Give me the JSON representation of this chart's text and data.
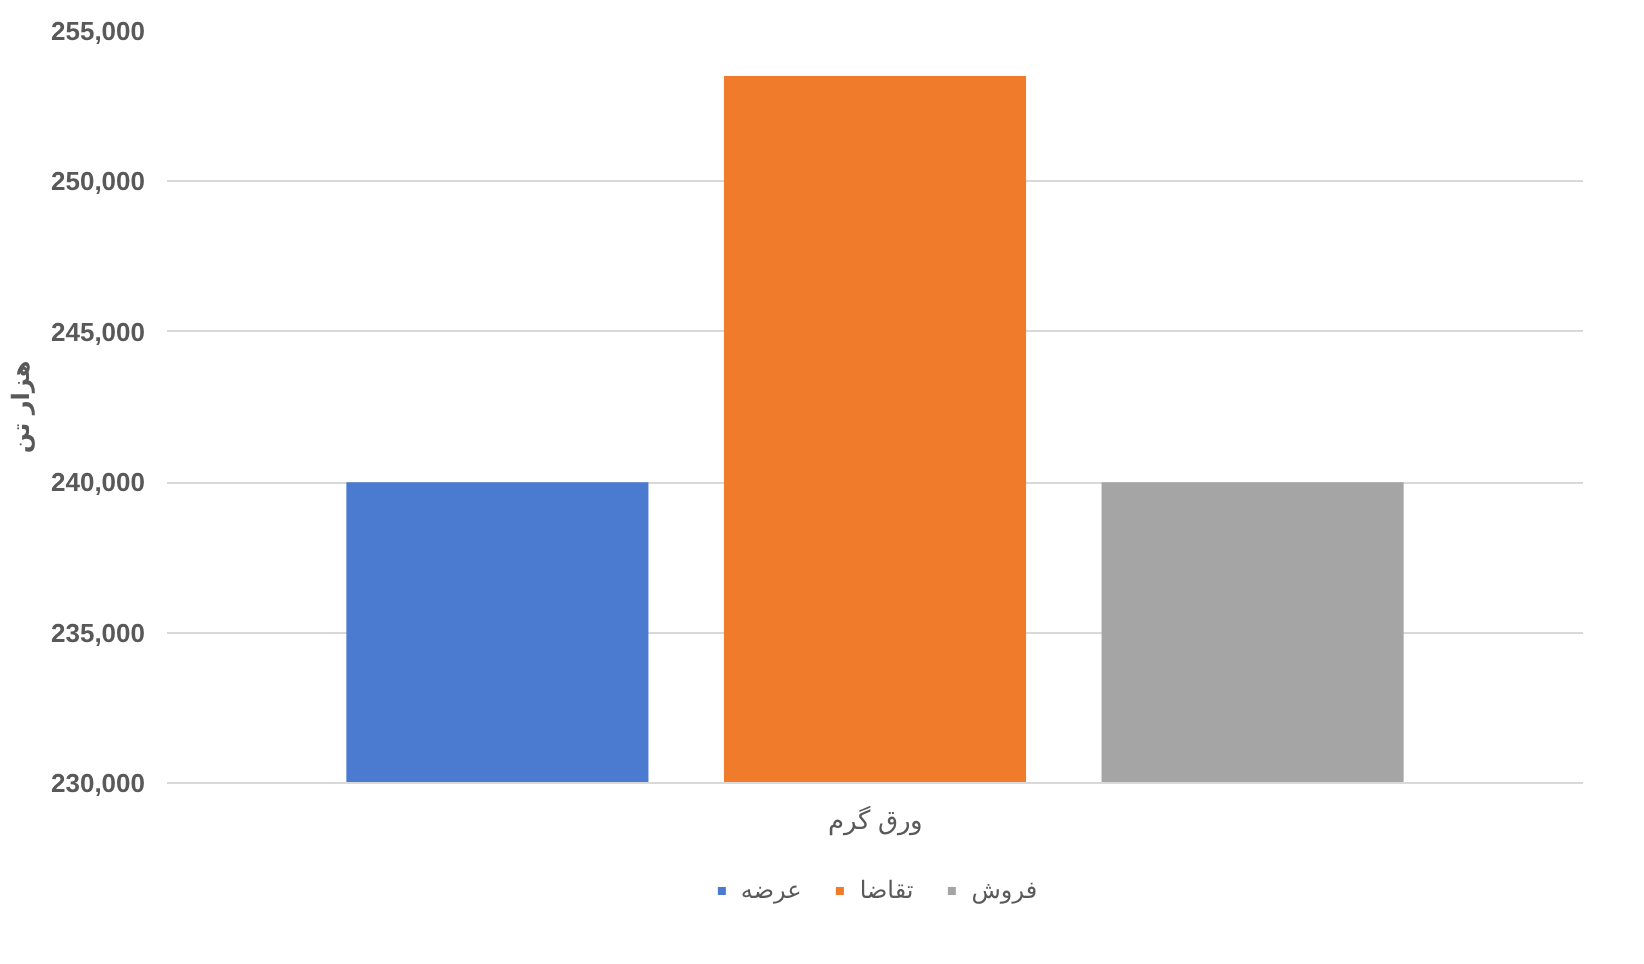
{
  "chart_data": {
    "type": "bar",
    "ylabel": "هزار تن",
    "categories": [
      "ورق گرم"
    ],
    "series": [
      {
        "name": "عرضه",
        "color": "#4a7bd0",
        "values": [
          240000
        ]
      },
      {
        "name": "تقاضا",
        "color": "#f07b2a",
        "values": [
          253500
        ]
      },
      {
        "name": "فروش",
        "color": "#a5a5a5",
        "values": [
          240000
        ]
      }
    ],
    "ylim": [
      230000,
      255000
    ],
    "yticks": [
      {
        "value": 230000,
        "label": "230,000"
      },
      {
        "value": 235000,
        "label": "235,000"
      },
      {
        "value": 240000,
        "label": "240,000"
      },
      {
        "value": 245000,
        "label": "245,000"
      },
      {
        "value": 250000,
        "label": "250,000"
      },
      {
        "value": 255000,
        "label": "255,000"
      }
    ],
    "grid": "y",
    "legend": "bottom"
  }
}
